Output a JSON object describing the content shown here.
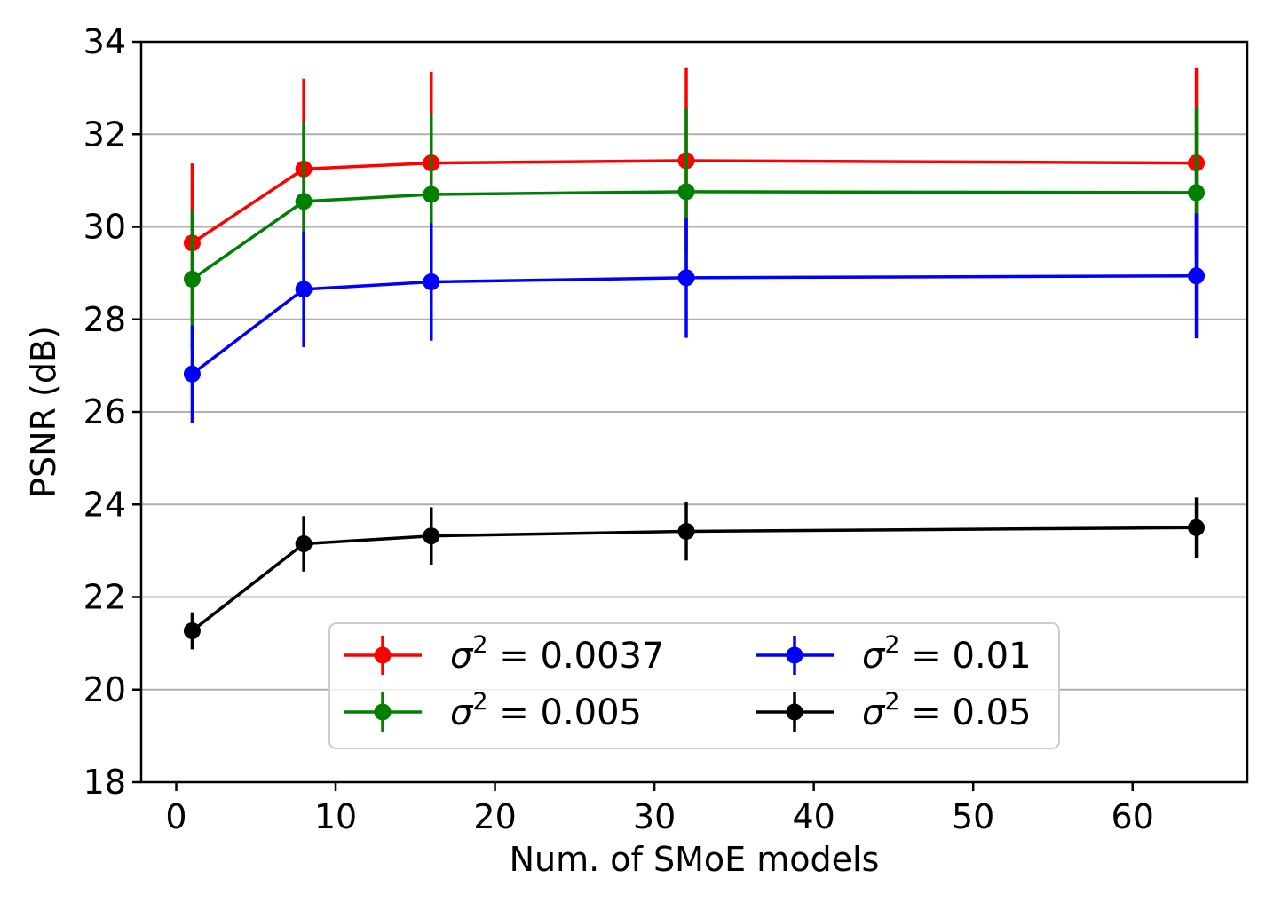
{
  "chart_data": {
    "type": "line",
    "title": "",
    "xlabel": "Num. of SMoE models",
    "ylabel": "PSNR (dB)",
    "xlim": [
      -2.2,
      67.2
    ],
    "ylim": [
      18,
      34
    ],
    "x_ticks": [
      0,
      10,
      20,
      30,
      40,
      50,
      60
    ],
    "y_ticks": [
      18,
      20,
      22,
      24,
      26,
      28,
      30,
      32,
      34
    ],
    "grid": "horizontal",
    "legend_position": "lower-center",
    "legend_columns": 2,
    "x": [
      1,
      8,
      16,
      32,
      64
    ],
    "series": [
      {
        "name": "σ² = 0.0037",
        "label_symbol": "σ",
        "label_sup": "2",
        "label_rest": " = 0.0037",
        "color": "#ff0000",
        "values": [
          29.65,
          31.25,
          31.38,
          31.43,
          31.38
        ],
        "error": [
          1.72,
          1.95,
          1.97,
          2.0,
          2.05
        ]
      },
      {
        "name": "σ² = 0.005",
        "label_symbol": "σ",
        "label_sup": "2",
        "label_rest": " = 0.005",
        "color": "#008000",
        "values": [
          28.87,
          30.55,
          30.7,
          30.76,
          30.74
        ],
        "error": [
          1.5,
          1.72,
          1.75,
          1.8,
          1.85
        ]
      },
      {
        "name": "σ² = 0.01",
        "label_symbol": "σ",
        "label_sup": "2",
        "label_rest": " = 0.01",
        "color": "#0000ff",
        "values": [
          26.82,
          28.65,
          28.81,
          28.9,
          28.94
        ],
        "error": [
          1.05,
          1.25,
          1.27,
          1.3,
          1.35
        ]
      },
      {
        "name": "σ² = 0.05",
        "label_symbol": "σ",
        "label_sup": "2",
        "label_rest": " = 0.05",
        "color": "#000000",
        "values": [
          21.27,
          23.15,
          23.32,
          23.42,
          23.5
        ],
        "error": [
          0.4,
          0.6,
          0.62,
          0.63,
          0.65
        ]
      }
    ]
  }
}
